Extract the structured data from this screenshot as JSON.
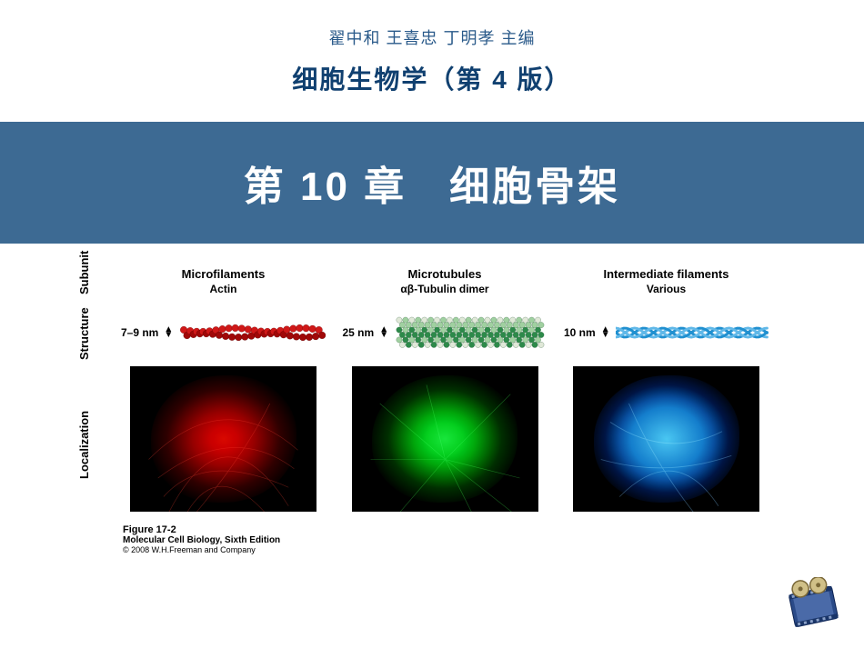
{
  "header": {
    "editors_line": "翟中和  王喜忠  丁明孝  主编",
    "book_title": "细胞生物学（第 4 版）",
    "text_color": "#2a5a8a",
    "title_color": "#104070"
  },
  "chapter": {
    "title": "第 10 章　细胞骨架",
    "banner_bg": "#3d6a93",
    "text_color": "#ffffff"
  },
  "figure": {
    "row_labels": {
      "subunit": "Subunit",
      "structure": "Structure",
      "localization": "Localization"
    },
    "columns": [
      {
        "header_main": "Microfilaments",
        "header_sub": "Actin",
        "diameter": "7–9 nm",
        "pattern": "actin",
        "color_primary": "#d01818",
        "color_secondary": "#a00808",
        "cell_glow": "red"
      },
      {
        "header_main": "Microtubules",
        "header_sub": "αβ-Tubulin dimer",
        "diameter": "25 nm",
        "pattern": "tubulin",
        "color_primary": "#2d8a4a",
        "color_secondary": "#a0d0a0",
        "color_tertiary": "#e0e8d8",
        "cell_glow": "green"
      },
      {
        "header_main": "Intermediate filaments",
        "header_sub": "Various",
        "diameter": "10 nm",
        "pattern": "rope",
        "color_primary": "#2090d0",
        "color_secondary": "#60b8e8",
        "cell_glow": "blue"
      }
    ],
    "caption": {
      "number": "Figure 17-2",
      "source": "Molecular Cell Biology, Sixth Edition",
      "copyright": "© 2008 W.H.Freeman and Company"
    }
  },
  "video_icon": {
    "frame_color": "#2a4a88",
    "reel_color": "#d0c088"
  }
}
